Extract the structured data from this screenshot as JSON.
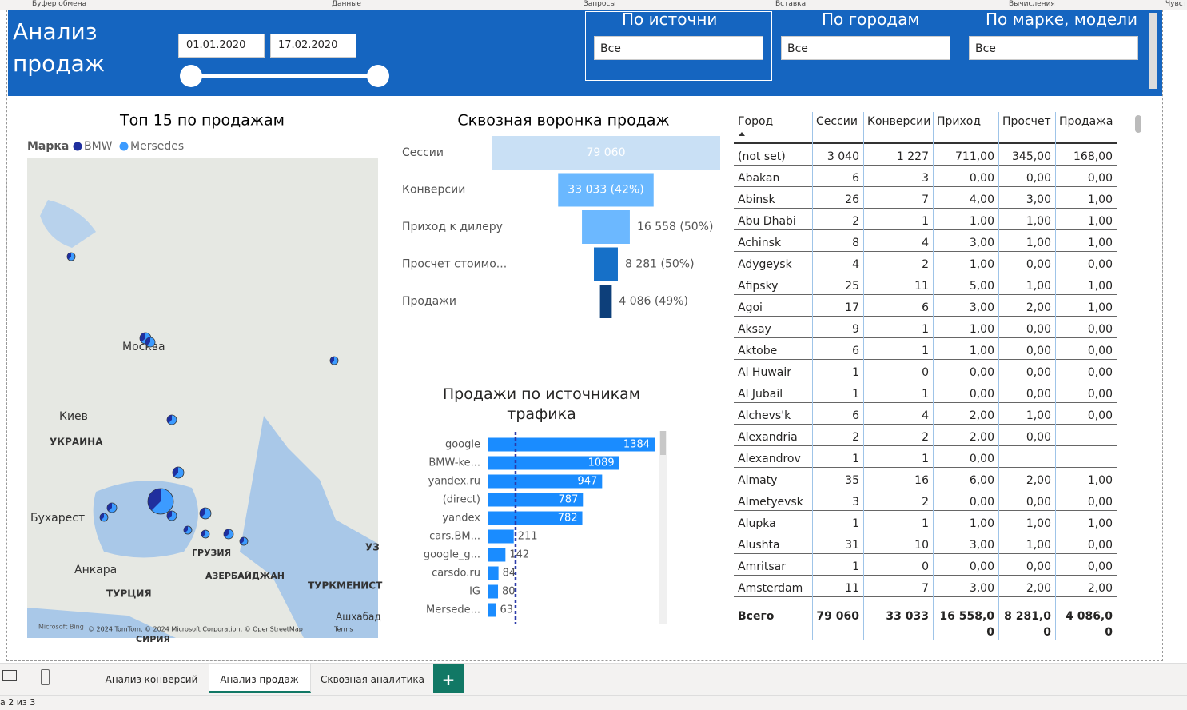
{
  "ribbon": [
    "Буфер обмена",
    "Данные",
    "Запросы",
    "Вставка",
    "Вычисления",
    "Чувст"
  ],
  "header": {
    "title": "Анализ продаж",
    "date_from": "01.01.2020",
    "date_to": "17.02.2020",
    "slicers": [
      {
        "title": "По источни",
        "value": "Все"
      },
      {
        "title": "По городам",
        "value": "Все"
      },
      {
        "title": "По марке, модели",
        "value": "Все"
      }
    ]
  },
  "map": {
    "title": "Топ 15 по продажам",
    "legend_title": "Марка",
    "legend": [
      {
        "name": "BMW",
        "color": "#1f2f9e"
      },
      {
        "name": "Mersedes",
        "color": "#3c9bff"
      }
    ],
    "labels": [
      "Москва",
      "Киев",
      "УКРАИНА",
      "Бухарест",
      "Анкара",
      "ТУРЦИЯ",
      "ГРУЗИЯ",
      "АЗЕРБАЙДЖАН",
      "ТУРКМЕНИСТ",
      "Ашхабад",
      "УЗ",
      "СИРИЯ"
    ],
    "attribution": "Microsoft Bing",
    "copyright": "© 2024 TomTom, © 2024 Microsoft Corporation, © OpenStreetMap",
    "terms": "Terms"
  },
  "chart_data": [
    {
      "type": "funnel",
      "title": "Сквозная воронка продаж",
      "categories": [
        "Сессии",
        "Конверсии",
        "Приход к дилеру",
        "Просчет стоимо...",
        "Продажи"
      ],
      "values": [
        79060,
        33033,
        16558,
        8281,
        4086
      ],
      "value_labels": [
        "79 060",
        "33 033 (42%)",
        "16 558 (50%)",
        "8 281 (50%)",
        "4 086 (49%)"
      ],
      "colors": [
        "#c9e0f5",
        "#6ab8ff",
        "#6cb8ff",
        "#1670c8",
        "#0d3f7a"
      ]
    },
    {
      "type": "bar",
      "title": "Продажи по источникам трафика",
      "categories": [
        "google",
        "BMW-ke...",
        "yandex.ru",
        "(direct)",
        "yandex",
        "cars.BM...",
        "google_g...",
        "carsdo.ru",
        "IG",
        "Mersede..."
      ],
      "values": [
        1384,
        1089,
        947,
        787,
        782,
        211,
        142,
        84,
        80,
        63
      ],
      "color": "#1a8cff",
      "xlim": [
        0,
        1384
      ],
      "reference_line": 226
    }
  ],
  "table": {
    "columns": [
      "Город",
      "Сессии",
      "Конверсии",
      "Приход",
      "Просчет",
      "Продажа"
    ],
    "rows": [
      [
        "(not set)",
        "3 040",
        "1 227",
        "711,00",
        "345,00",
        "168,00"
      ],
      [
        "Abakan",
        "6",
        "3",
        "0,00",
        "0,00",
        "0,00"
      ],
      [
        "Abinsk",
        "26",
        "7",
        "4,00",
        "3,00",
        "1,00"
      ],
      [
        "Abu Dhabi",
        "2",
        "1",
        "1,00",
        "1,00",
        "1,00"
      ],
      [
        "Achinsk",
        "8",
        "4",
        "3,00",
        "1,00",
        "1,00"
      ],
      [
        "Adygeysk",
        "4",
        "2",
        "1,00",
        "0,00",
        "0,00"
      ],
      [
        "Afipsky",
        "25",
        "11",
        "5,00",
        "1,00",
        "1,00"
      ],
      [
        "Agoi",
        "17",
        "6",
        "3,00",
        "2,00",
        "1,00"
      ],
      [
        "Aksay",
        "9",
        "1",
        "1,00",
        "0,00",
        "0,00"
      ],
      [
        "Aktobe",
        "6",
        "1",
        "1,00",
        "0,00",
        "0,00"
      ],
      [
        "Al Huwair",
        "1",
        "0",
        "0,00",
        "0,00",
        "0,00"
      ],
      [
        "Al Jubail",
        "1",
        "1",
        "0,00",
        "0,00",
        "0,00"
      ],
      [
        "Alchevs'k",
        "6",
        "4",
        "2,00",
        "1,00",
        "0,00"
      ],
      [
        "Alexandria",
        "2",
        "2",
        "2,00",
        "0,00",
        null
      ],
      [
        "Alexandrov",
        "1",
        "1",
        "0,00",
        null,
        null
      ],
      [
        "Almaty",
        "35",
        "16",
        "6,00",
        "2,00",
        "1,00"
      ],
      [
        "Almetyevsk",
        "3",
        "2",
        "0,00",
        "0,00",
        "0,00"
      ],
      [
        "Alupka",
        "1",
        "1",
        "1,00",
        "1,00",
        "1,00"
      ],
      [
        "Alushta",
        "31",
        "10",
        "3,00",
        "1,00",
        "0,00"
      ],
      [
        "Amritsar",
        "1",
        "0",
        "0,00",
        "0,00",
        "0,00"
      ],
      [
        "Amsterdam",
        "11",
        "7",
        "3,00",
        "2,00",
        "2,00"
      ]
    ],
    "total": [
      "Всего",
      "79 060",
      "33 033",
      "16 558,00",
      "8 281,00",
      "4 086,00"
    ]
  },
  "tabs": [
    "Анализ конверсий",
    "Анализ продаж",
    "Сквозная аналитика",
    "+"
  ],
  "status": "а 2 из 3"
}
